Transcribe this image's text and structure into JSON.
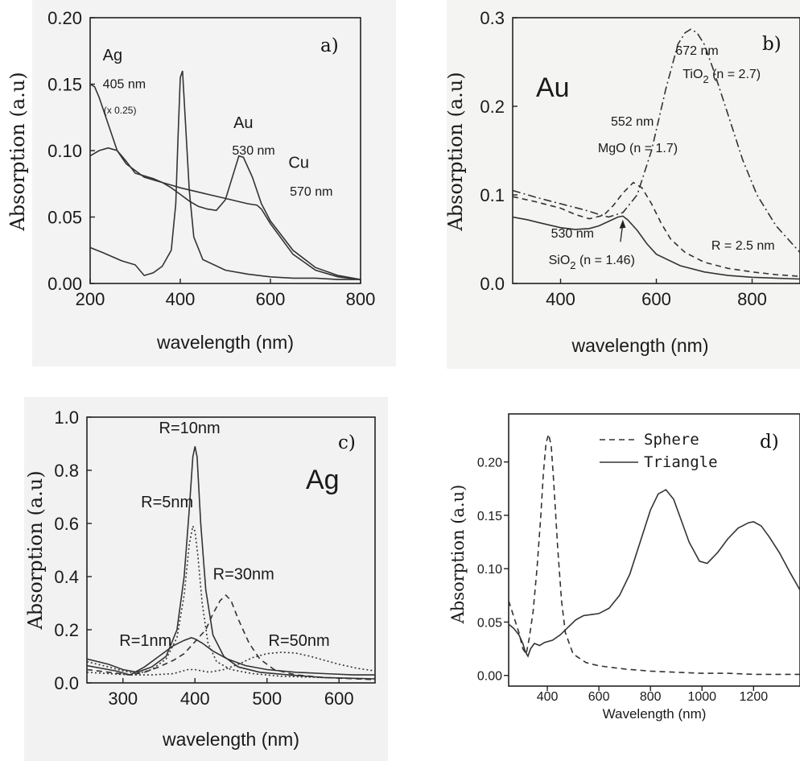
{
  "chart_data": [
    {
      "panel": "a)",
      "type": "line",
      "xlabel": "wavelength (nm)",
      "ylabel": "Absorption (a.u)",
      "xlim": [
        200,
        800
      ],
      "ylim": [
        0,
        0.2
      ],
      "xticks": [
        "200",
        "400",
        "600",
        "800"
      ],
      "yticks": [
        "0.00",
        "0.05",
        "0.10",
        "0.15",
        "0.20"
      ],
      "annotations": [
        {
          "text": "Ag",
          "x": 228,
          "y": 0.168,
          "size": "big"
        },
        {
          "text": "405 nm",
          "x": 228,
          "y": 0.147,
          "size": "md"
        },
        {
          "text": "(x 0.25)",
          "x": 230,
          "y": 0.128,
          "size": "sm"
        },
        {
          "text": "Au",
          "x": 518,
          "y": 0.117,
          "size": "big"
        },
        {
          "text": "530 nm",
          "x": 515,
          "y": 0.097,
          "size": "md"
        },
        {
          "text": "Cu",
          "x": 640,
          "y": 0.087,
          "size": "big"
        },
        {
          "text": "570 nm",
          "x": 643,
          "y": 0.066,
          "size": "md"
        }
      ],
      "series": [
        {
          "style": "solid",
          "x": [
            200,
            215,
            230,
            250,
            270,
            300,
            320,
            340,
            360,
            380,
            390,
            395,
            400,
            405,
            410,
            420,
            430,
            450,
            500,
            550,
            600,
            650,
            700,
            750,
            800
          ],
          "y": [
            0.027,
            0.025,
            0.023,
            0.02,
            0.017,
            0.014,
            0.006,
            0.008,
            0.013,
            0.025,
            0.06,
            0.11,
            0.155,
            0.16,
            0.13,
            0.07,
            0.035,
            0.018,
            0.01,
            0.007,
            0.005,
            0.004,
            0.004,
            0.003,
            0.003
          ]
        },
        {
          "style": "solid",
          "x": [
            200,
            210,
            220,
            240,
            260,
            280,
            300,
            320,
            340,
            360,
            380,
            400,
            420,
            440,
            460,
            480,
            500,
            520,
            530,
            540,
            560,
            580,
            600,
            650,
            700,
            750,
            800
          ],
          "y": [
            0.096,
            0.098,
            0.1,
            0.102,
            0.1,
            0.092,
            0.083,
            0.081,
            0.079,
            0.076,
            0.072,
            0.067,
            0.062,
            0.058,
            0.056,
            0.055,
            0.063,
            0.085,
            0.096,
            0.095,
            0.08,
            0.06,
            0.047,
            0.025,
            0.012,
            0.006,
            0.003
          ]
        },
        {
          "style": "solid",
          "x": [
            200,
            210,
            220,
            240,
            260,
            280,
            300,
            320,
            340,
            360,
            380,
            400,
            450,
            500,
            550,
            570,
            580,
            600,
            650,
            700,
            750,
            800
          ],
          "y": [
            0.15,
            0.148,
            0.14,
            0.12,
            0.1,
            0.09,
            0.085,
            0.08,
            0.078,
            0.076,
            0.074,
            0.072,
            0.068,
            0.064,
            0.06,
            0.059,
            0.056,
            0.045,
            0.022,
            0.01,
            0.005,
            0.003
          ]
        }
      ]
    },
    {
      "panel": "b)",
      "metal": "Au",
      "type": "line",
      "xlabel": "wavelength (nm)",
      "ylabel": "Absorption (a.u)",
      "xlim": [
        300,
        900
      ],
      "ylim": [
        0,
        0.3
      ],
      "xticks": [
        "400",
        "600",
        "800"
      ],
      "yticks": [
        "0.0",
        "0.1",
        "0.2",
        "0.3"
      ],
      "annotations": [
        {
          "text": "672 nm",
          "x": 640,
          "y": 0.258,
          "sub": ""
        },
        {
          "text": "TiO",
          "x": 655,
          "y": 0.232,
          "sub": "2",
          "after": " (n = 2.7)"
        },
        {
          "text": "552 nm",
          "x": 505,
          "y": 0.178,
          "sub": ""
        },
        {
          "text": "MgO (n = 1.7)",
          "x": 478,
          "y": 0.148,
          "sub": ""
        },
        {
          "text": "530 nm",
          "x": 380,
          "y": 0.052,
          "sub": ""
        },
        {
          "text": "SiO",
          "x": 375,
          "y": 0.022,
          "sub": "2",
          "after": " (n = 1.46)"
        },
        {
          "text": "R = 2.5 nm",
          "x": 715,
          "y": 0.038,
          "sub": ""
        }
      ],
      "series": [
        {
          "name": "SiO2 (n = 1.46)",
          "style": "solid",
          "x": [
            300,
            330,
            360,
            400,
            430,
            460,
            480,
            500,
            520,
            530,
            540,
            560,
            580,
            600,
            650,
            700,
            750,
            800,
            850,
            900
          ],
          "y": [
            0.075,
            0.072,
            0.068,
            0.063,
            0.061,
            0.062,
            0.065,
            0.07,
            0.075,
            0.076,
            0.072,
            0.06,
            0.045,
            0.033,
            0.02,
            0.013,
            0.009,
            0.007,
            0.006,
            0.005
          ]
        },
        {
          "name": "MgO (n = 1.7)",
          "style": "dashed",
          "x": [
            300,
            350,
            400,
            430,
            460,
            490,
            510,
            530,
            552,
            570,
            590,
            610,
            630,
            660,
            700,
            750,
            800,
            850,
            900
          ],
          "y": [
            0.098,
            0.092,
            0.085,
            0.078,
            0.073,
            0.077,
            0.088,
            0.102,
            0.114,
            0.108,
            0.09,
            0.068,
            0.05,
            0.035,
            0.024,
            0.017,
            0.013,
            0.01,
            0.008
          ]
        },
        {
          "name": "TiO2 (n = 2.7)",
          "style": "dashdot",
          "x": [
            300,
            350,
            400,
            450,
            480,
            500,
            530,
            560,
            590,
            620,
            645,
            660,
            672,
            685,
            700,
            720,
            750,
            780,
            810,
            850,
            900
          ],
          "y": [
            0.105,
            0.097,
            0.09,
            0.083,
            0.078,
            0.075,
            0.08,
            0.1,
            0.15,
            0.22,
            0.27,
            0.283,
            0.287,
            0.283,
            0.27,
            0.24,
            0.19,
            0.14,
            0.1,
            0.065,
            0.035
          ]
        }
      ]
    },
    {
      "panel": "c)",
      "metal": "Ag",
      "type": "line",
      "xlabel": "wavelength (nm)",
      "ylabel": "Absorption (a.u)",
      "xlim": [
        250,
        650
      ],
      "ylim": [
        0,
        1.0
      ],
      "xticks": [
        "300",
        "400",
        "500",
        "600"
      ],
      "yticks": [
        "0.0",
        "0.2",
        "0.4",
        "0.6",
        "0.8",
        "1.0"
      ],
      "annotations": [
        {
          "text": "R=10nm",
          "x": 350,
          "y": 0.94
        },
        {
          "text": "R=5nm",
          "x": 325,
          "y": 0.66
        },
        {
          "text": "R=30nm",
          "x": 425,
          "y": 0.39
        },
        {
          "text": "R=1nm",
          "x": 295,
          "y": 0.14
        },
        {
          "text": "R=50nm",
          "x": 502,
          "y": 0.14
        }
      ],
      "series": [
        {
          "name": "R=10nm",
          "style": "solid",
          "x": [
            250,
            280,
            300,
            320,
            340,
            360,
            375,
            385,
            392,
            397,
            400,
            403,
            408,
            415,
            425,
            440,
            460,
            490,
            530,
            580,
            650
          ],
          "y": [
            0.09,
            0.07,
            0.05,
            0.04,
            0.06,
            0.1,
            0.2,
            0.4,
            0.65,
            0.85,
            0.89,
            0.85,
            0.6,
            0.35,
            0.18,
            0.1,
            0.06,
            0.04,
            0.03,
            0.02,
            0.015
          ]
        },
        {
          "name": "R=5nm",
          "style": "dotted",
          "x": [
            250,
            280,
            300,
            320,
            340,
            360,
            375,
            385,
            392,
            397,
            400,
            404,
            410,
            418,
            430,
            450,
            480,
            520,
            580,
            650
          ],
          "y": [
            0.08,
            0.06,
            0.045,
            0.035,
            0.05,
            0.09,
            0.17,
            0.33,
            0.52,
            0.59,
            0.57,
            0.48,
            0.3,
            0.15,
            0.08,
            0.05,
            0.035,
            0.025,
            0.02,
            0.015
          ]
        },
        {
          "name": "R=1nm",
          "style": "solid",
          "x": [
            250,
            270,
            290,
            310,
            330,
            350,
            370,
            385,
            395,
            400,
            410,
            425,
            445,
            470,
            500,
            540,
            580,
            620,
            650
          ],
          "y": [
            0.065,
            0.055,
            0.045,
            0.03,
            0.06,
            0.1,
            0.14,
            0.16,
            0.17,
            0.165,
            0.15,
            0.12,
            0.09,
            0.065,
            0.05,
            0.04,
            0.035,
            0.03,
            0.03
          ]
        },
        {
          "name": "R=30nm",
          "style": "dashed",
          "x": [
            250,
            280,
            310,
            330,
            350,
            370,
            385,
            395,
            405,
            415,
            425,
            435,
            443,
            450,
            460,
            475,
            490,
            510,
            540,
            580,
            650
          ],
          "y": [
            0.05,
            0.04,
            0.03,
            0.04,
            0.06,
            0.085,
            0.11,
            0.14,
            0.17,
            0.2,
            0.26,
            0.31,
            0.33,
            0.31,
            0.24,
            0.15,
            0.09,
            0.05,
            0.03,
            0.02,
            0.012
          ]
        },
        {
          "name": "R=50nm",
          "style": "dotted",
          "x": [
            250,
            280,
            310,
            340,
            370,
            390,
            400,
            420,
            440,
            460,
            480,
            500,
            520,
            540,
            560,
            580,
            600,
            625,
            650
          ],
          "y": [
            0.04,
            0.035,
            0.03,
            0.03,
            0.035,
            0.05,
            0.05,
            0.04,
            0.05,
            0.07,
            0.095,
            0.11,
            0.115,
            0.112,
            0.1,
            0.085,
            0.07,
            0.055,
            0.045
          ]
        }
      ]
    },
    {
      "panel": "d)",
      "type": "line",
      "xlabel": "Wavelength (nm)",
      "ylabel": "Absorption (a.u)",
      "xlim": [
        250,
        1380
      ],
      "ylim": [
        -0.01,
        0.245
      ],
      "xticks": [
        "400",
        "600",
        "800",
        "1000",
        "1200"
      ],
      "yticks": [
        "0.00",
        "0.05",
        "0.10",
        "0.15",
        "0.20"
      ],
      "legend": {
        "position": "top-right",
        "entries": [
          {
            "label": "Sphere",
            "style": "dashed"
          },
          {
            "label": "Triangle",
            "style": "solid"
          }
        ]
      },
      "series": [
        {
          "name": "Sphere",
          "style": "dashed",
          "x": [
            250,
            270,
            290,
            305,
            318,
            330,
            345,
            360,
            375,
            385,
            395,
            405,
            415,
            425,
            440,
            455,
            470,
            500,
            550,
            600,
            700,
            800,
            900,
            1000,
            1100,
            1200,
            1300,
            1380
          ],
          "y": [
            0.07,
            0.055,
            0.04,
            0.025,
            0.02,
            0.035,
            0.06,
            0.1,
            0.15,
            0.19,
            0.218,
            0.226,
            0.215,
            0.18,
            0.12,
            0.07,
            0.04,
            0.02,
            0.012,
            0.009,
            0.006,
            0.004,
            0.003,
            0.002,
            0.002,
            0.001,
            0.001,
            0.001
          ]
        },
        {
          "name": "Triangle",
          "style": "solid",
          "x": [
            250,
            270,
            290,
            305,
            315,
            325,
            335,
            350,
            370,
            390,
            420,
            450,
            480,
            510,
            540,
            570,
            600,
            640,
            680,
            720,
            760,
            800,
            830,
            860,
            890,
            920,
            950,
            990,
            1020,
            1060,
            1100,
            1140,
            1180,
            1200,
            1230,
            1260,
            1300,
            1340,
            1380
          ],
          "y": [
            0.048,
            0.044,
            0.038,
            0.03,
            0.022,
            0.018,
            0.025,
            0.03,
            0.028,
            0.031,
            0.033,
            0.038,
            0.045,
            0.052,
            0.056,
            0.057,
            0.058,
            0.063,
            0.075,
            0.095,
            0.125,
            0.155,
            0.17,
            0.174,
            0.165,
            0.145,
            0.125,
            0.107,
            0.105,
            0.115,
            0.128,
            0.138,
            0.143,
            0.144,
            0.14,
            0.13,
            0.115,
            0.097,
            0.08
          ]
        }
      ]
    }
  ]
}
